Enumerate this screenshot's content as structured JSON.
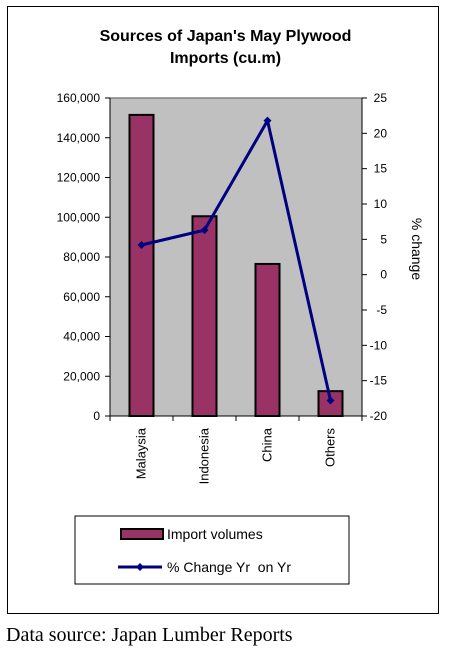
{
  "chart_data": {
    "type": "bar",
    "title_line1": "Sources of Japan's May Plywood",
    "title_line2": "Imports (cu.m)",
    "categories": [
      "Malaysia",
      "Indonesia",
      "China",
      "Others"
    ],
    "series": [
      {
        "name": "Import volumes",
        "type": "bar",
        "axis": "left",
        "values": [
          151500,
          100500,
          76500,
          12500
        ],
        "color": "#993366"
      },
      {
        "name": "% Change Yr  on Yr",
        "type": "line",
        "axis": "right",
        "values": [
          4.2,
          6.3,
          21.8,
          -17.8
        ],
        "color": "#000080"
      }
    ],
    "ylim": [
      0,
      160000
    ],
    "y_ticks": [
      0,
      20000,
      40000,
      60000,
      80000,
      100000,
      120000,
      140000,
      160000
    ],
    "y_tick_labels": [
      "0",
      "20,000",
      "40,000",
      "60,000",
      "80,000",
      "100,000",
      "120,000",
      "140,000",
      "160,000"
    ],
    "y2lim": [
      -20,
      25
    ],
    "y2_ticks": [
      -20,
      -15,
      -10,
      -5,
      0,
      5,
      10,
      15,
      20,
      25
    ],
    "y2_tick_labels": [
      "-20",
      "-15",
      "-10",
      "-5",
      "0",
      "5",
      "10",
      "15",
      "20",
      "25"
    ],
    "y2label": "% change",
    "plot_background": "#c0c0c0",
    "legend_position": "bottom",
    "grid": false
  },
  "footer": {
    "source": "Data source: Japan Lumber Reports"
  }
}
